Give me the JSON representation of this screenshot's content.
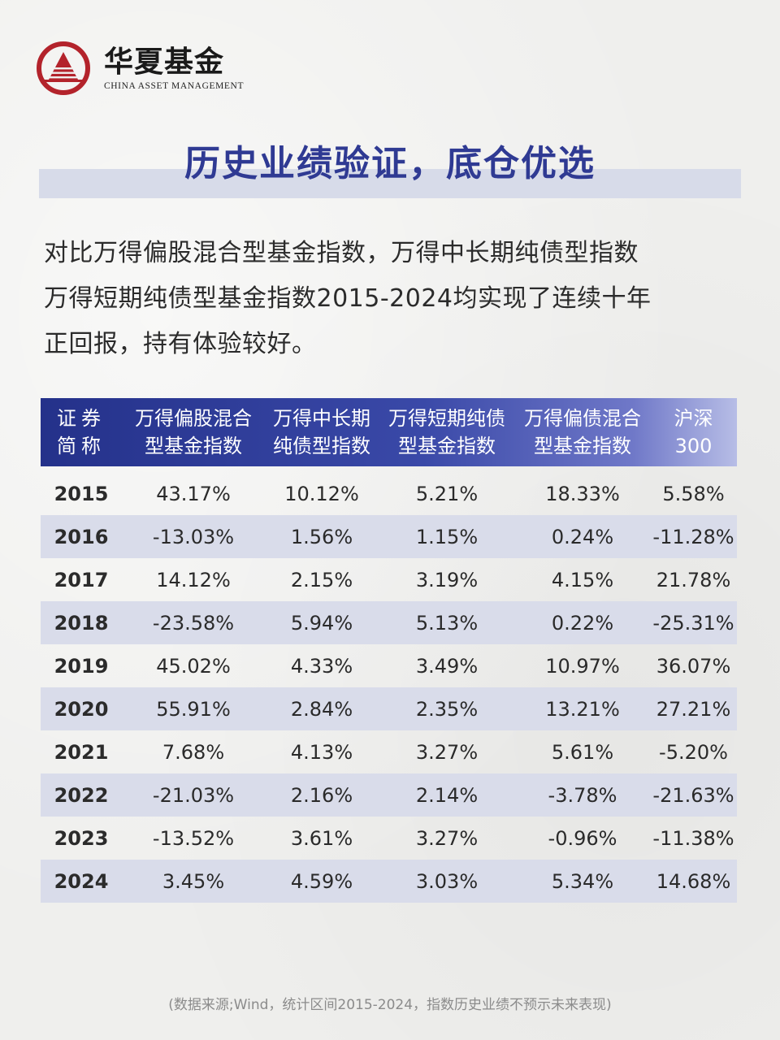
{
  "brand": {
    "name_cn": "华夏基金",
    "name_en": "CHINA ASSET MANAGEMENT",
    "logo_icon": "pagoda-triangle-circle-icon",
    "brand_color": "#b3232b"
  },
  "title": "历史业绩验证，底仓优选",
  "intro": [
    "对比万得偏股混合型基金指数，万得中长期纯债型指数",
    "万得短期纯债型基金指数2015-2024均实现了连续十年",
    "正回报，持有体验较好。"
  ],
  "table": {
    "headers": [
      [
        "证券",
        "简称"
      ],
      [
        "万得偏股混合",
        "型基金指数"
      ],
      [
        "万得中长期",
        "纯债型指数"
      ],
      [
        "万得短期纯债",
        "型基金指数"
      ],
      [
        "万得偏债混合",
        "型基金指数"
      ],
      [
        "沪深",
        "300"
      ]
    ],
    "rows": [
      [
        "2015",
        "43.17%",
        "10.12%",
        "5.21%",
        "18.33%",
        "5.58%"
      ],
      [
        "2016",
        "-13.03%",
        "1.56%",
        "1.15%",
        "0.24%",
        "-11.28%"
      ],
      [
        "2017",
        "14.12%",
        "2.15%",
        "3.19%",
        "4.15%",
        "21.78%"
      ],
      [
        "2018",
        "-23.58%",
        "5.94%",
        "5.13%",
        "0.22%",
        "-25.31%"
      ],
      [
        "2019",
        "45.02%",
        "4.33%",
        "3.49%",
        "10.97%",
        "36.07%"
      ],
      [
        "2020",
        "55.91%",
        "2.84%",
        "2.35%",
        "13.21%",
        "27.21%"
      ],
      [
        "2021",
        "7.68%",
        "4.13%",
        "3.27%",
        "5.61%",
        "-5.20%"
      ],
      [
        "2022",
        "-21.03%",
        "2.16%",
        "2.14%",
        "-3.78%",
        "-21.63%"
      ],
      [
        "2023",
        "-13.52%",
        "3.61%",
        "3.27%",
        "-0.96%",
        "-11.38%"
      ],
      [
        "2024",
        "3.45%",
        "4.59%",
        "3.03%",
        "5.34%",
        "14.68%"
      ]
    ]
  },
  "footnote": "(数据来源;Wind，统计区间2015-2024，指数历史业绩不预示未来表现)"
}
